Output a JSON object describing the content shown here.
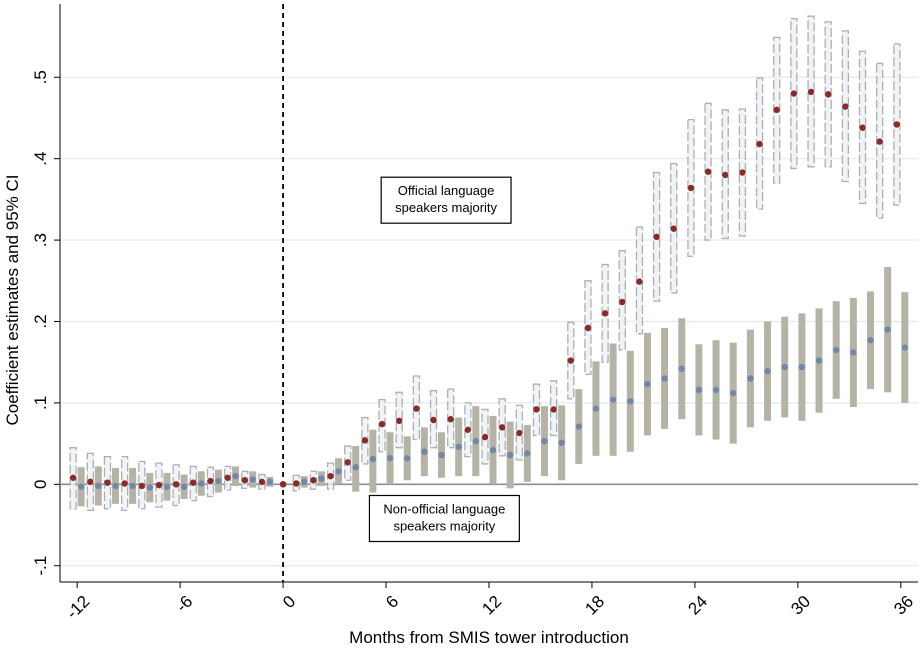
{
  "chart_data": {
    "type": "scatter",
    "xlabel": "Months from SMIS tower introduction",
    "ylabel": "Coefficient estimates and 95% CI",
    "xlim": [
      -13,
      37
    ],
    "ylim": [
      -0.12,
      0.59
    ],
    "xticks": [
      -12,
      -6,
      0,
      6,
      12,
      18,
      24,
      30,
      36
    ],
    "xtick_labels": [
      "-12",
      "-6",
      "0",
      "6",
      "12",
      "18",
      "24",
      "30",
      "36"
    ],
    "yticks": [
      -0.1,
      0,
      0.1,
      0.2,
      0.3,
      0.4,
      0.5
    ],
    "ytick_labels": [
      "-.1",
      "0",
      ".1",
      ".2",
      ".3",
      ".4",
      ".5"
    ],
    "grid": "horizontal",
    "reference_lines": {
      "vertical_dashed_at_x": 0,
      "horizontal_at_y": 0
    },
    "annotations": [
      {
        "lines": [
          "Official language",
          "speakers majority"
        ],
        "x": 9.5,
        "y": 0.349
      },
      {
        "lines": [
          "Non-official language",
          "speakers majority"
        ],
        "x": 9.4,
        "y": -0.042
      }
    ],
    "series": [
      {
        "name": "Official language speakers majority",
        "marker_color": "#8b2a2a",
        "ci_style": "light gray dashed-outline bars",
        "x": [
          -12,
          -11,
          -10,
          -9,
          -8,
          -7,
          -6,
          -5,
          -4,
          -3,
          -2,
          -1,
          0,
          1,
          2,
          3,
          4,
          5,
          6,
          7,
          8,
          9,
          10,
          11,
          12,
          13,
          14,
          15,
          16,
          17,
          18,
          19,
          20,
          21,
          22,
          23,
          24,
          25,
          26,
          27,
          28,
          29,
          30,
          31,
          32,
          33,
          34,
          35,
          36
        ],
        "y": [
          0.008,
          0.003,
          0.002,
          0.001,
          -0.002,
          -0.001,
          0.0,
          0.002,
          0.004,
          0.008,
          0.005,
          0.003,
          0.0,
          0.001,
          0.005,
          0.01,
          0.027,
          0.054,
          0.074,
          0.078,
          0.093,
          0.079,
          0.08,
          0.067,
          0.058,
          0.07,
          0.063,
          0.092,
          0.092,
          0.152,
          0.192,
          0.21,
          0.224,
          0.249,
          0.304,
          0.314,
          0.364,
          0.384,
          0.38,
          0.383,
          0.418,
          0.46,
          0.48,
          0.482,
          0.479,
          0.464,
          0.438,
          0.421,
          0.442
        ],
        "ci_low": [
          -0.03,
          -0.032,
          -0.03,
          -0.032,
          -0.03,
          -0.028,
          -0.026,
          -0.02,
          -0.015,
          -0.007,
          -0.005,
          -0.006,
          0.0,
          -0.008,
          -0.006,
          -0.006,
          0.005,
          0.025,
          0.04,
          0.045,
          0.055,
          0.045,
          0.045,
          0.034,
          0.025,
          0.035,
          0.03,
          0.06,
          0.06,
          0.105,
          0.135,
          0.15,
          0.165,
          0.185,
          0.225,
          0.235,
          0.28,
          0.3,
          0.302,
          0.305,
          0.338,
          0.37,
          0.388,
          0.39,
          0.39,
          0.372,
          0.345,
          0.327,
          0.343
        ],
        "ci_high": [
          0.045,
          0.038,
          0.034,
          0.034,
          0.028,
          0.026,
          0.024,
          0.022,
          0.021,
          0.022,
          0.016,
          0.012,
          0.0,
          0.011,
          0.016,
          0.026,
          0.047,
          0.082,
          0.104,
          0.113,
          0.133,
          0.115,
          0.117,
          0.1,
          0.092,
          0.105,
          0.097,
          0.123,
          0.127,
          0.199,
          0.25,
          0.27,
          0.287,
          0.316,
          0.383,
          0.394,
          0.448,
          0.468,
          0.46,
          0.461,
          0.499,
          0.549,
          0.572,
          0.575,
          0.568,
          0.557,
          0.532,
          0.517,
          0.541
        ]
      },
      {
        "name": "Non-official language speakers majority",
        "marker_color": "#7288a8",
        "ci_style": "solid gray bars",
        "ci_color": "#b5b3a6",
        "x": [
          -12,
          -11,
          -10,
          -9,
          -8,
          -7,
          -6,
          -5,
          -4,
          -3,
          -2,
          -1,
          0,
          1,
          2,
          3,
          4,
          5,
          6,
          7,
          8,
          9,
          10,
          11,
          12,
          13,
          14,
          15,
          16,
          17,
          18,
          19,
          20,
          21,
          22,
          23,
          24,
          25,
          26,
          27,
          28,
          29,
          30,
          31,
          32,
          33,
          34,
          35,
          36
        ],
        "y": [
          -0.003,
          -0.002,
          -0.002,
          -0.002,
          -0.004,
          -0.003,
          -0.003,
          0.001,
          0.004,
          0.01,
          0.006,
          0.003,
          0.0,
          0.003,
          0.007,
          0.016,
          0.021,
          0.031,
          0.032,
          0.032,
          0.04,
          0.036,
          0.046,
          0.053,
          0.042,
          0.036,
          0.038,
          0.053,
          0.051,
          0.071,
          0.093,
          0.104,
          0.102,
          0.123,
          0.13,
          0.142,
          0.116,
          0.116,
          0.112,
          0.13,
          0.139,
          0.144,
          0.144,
          0.152,
          0.165,
          0.162,
          0.177,
          0.19,
          0.168
        ],
        "ci_low": [
          -0.027,
          -0.026,
          -0.024,
          -0.024,
          -0.022,
          -0.02,
          -0.018,
          -0.014,
          -0.01,
          -0.002,
          -0.004,
          -0.003,
          0.0,
          -0.004,
          -0.002,
          0.0,
          -0.009,
          -0.01,
          0.0,
          0.005,
          0.01,
          0.008,
          0.01,
          0.01,
          0.0,
          -0.005,
          0.003,
          0.01,
          0.005,
          0.025,
          0.035,
          0.035,
          0.04,
          0.06,
          0.068,
          0.08,
          0.06,
          0.055,
          0.05,
          0.07,
          0.078,
          0.082,
          0.078,
          0.088,
          0.105,
          0.095,
          0.117,
          0.113,
          0.1
        ],
        "ci_high": [
          0.021,
          0.022,
          0.02,
          0.02,
          0.014,
          0.014,
          0.012,
          0.016,
          0.018,
          0.022,
          0.016,
          0.009,
          0.0,
          0.01,
          0.016,
          0.032,
          0.047,
          0.067,
          0.064,
          0.059,
          0.07,
          0.064,
          0.082,
          0.096,
          0.084,
          0.077,
          0.073,
          0.096,
          0.097,
          0.117,
          0.151,
          0.173,
          0.164,
          0.186,
          0.192,
          0.204,
          0.172,
          0.177,
          0.174,
          0.19,
          0.2,
          0.206,
          0.21,
          0.216,
          0.225,
          0.229,
          0.237,
          0.267,
          0.236
        ]
      }
    ]
  }
}
